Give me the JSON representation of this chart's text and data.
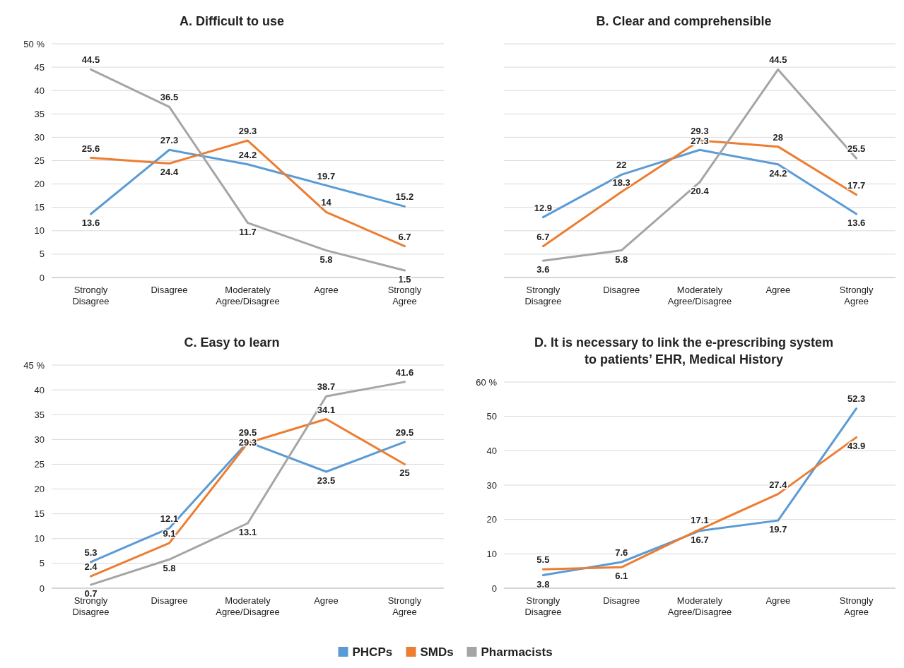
{
  "chart_data": [
    {
      "type": "line",
      "title": "A. Difficult to use",
      "categories": [
        "Strongly Disagree",
        "Disagree",
        "Moderately Agree/Disagree",
        "Agree",
        "Strongly Agree"
      ],
      "series": [
        {
          "name": "PHCPs",
          "color": "#5b9bd5",
          "values": [
            13.6,
            27.3,
            24.2,
            19.7,
            15.2
          ]
        },
        {
          "name": "SMDs",
          "color": "#ed7d31",
          "values": [
            25.6,
            24.4,
            29.3,
            14,
            6.7
          ]
        },
        {
          "name": "Pharmacists",
          "color": "#a5a5a5",
          "values": [
            44.5,
            36.5,
            11.7,
            5.8,
            1.5
          ]
        }
      ],
      "ylim": [
        0,
        50
      ],
      "yticks": [
        0,
        5,
        10,
        15,
        20,
        25,
        30,
        35,
        40,
        45,
        {
          "value": 50,
          "label": "50 %"
        }
      ],
      "grid": "y",
      "data_labels": true,
      "marker": "none",
      "legend": "bottom"
    },
    {
      "type": "line",
      "title": "B. Clear and comprehensible",
      "categories": [
        "Strongly Disagree",
        "Disagree",
        "Moderately Agree/Disagree",
        "Agree",
        "Strongly Agree"
      ],
      "series": [
        {
          "color": "#5b9bd5",
          "values": [
            12.9,
            22,
            27.3,
            24.2,
            13.6
          ]
        },
        {
          "color": "#ed7d31",
          "values": [
            6.7,
            18.3,
            29.3,
            28,
            17.7
          ]
        },
        {
          "color": "#a5a5a5",
          "values": [
            3.6,
            5.8,
            20.4,
            44.5,
            25.5
          ]
        }
      ],
      "ylim": [
        0,
        50
      ],
      "yticks": [
        {
          "value": 0,
          "label": null
        },
        {
          "value": 5,
          "label": null
        },
        {
          "value": 10,
          "label": null
        },
        {
          "value": 15,
          "label": null
        },
        {
          "value": 20,
          "label": null
        },
        {
          "value": 25,
          "label": null
        },
        {
          "value": 30,
          "label": null
        },
        {
          "value": 35,
          "label": null
        },
        {
          "value": 40,
          "label": null
        },
        {
          "value": 45,
          "label": null
        },
        {
          "value": 50,
          "label": null
        }
      ],
      "tick_labels": "x",
      "grid": "y",
      "data_labels": true,
      "marker": "none"
    },
    {
      "type": "line",
      "title": "C. Easy to learn",
      "categories": [
        "Strongly Disagree",
        "Disagree",
        "Moderately Agree/Disagree",
        "Agree",
        "Strongly Agree"
      ],
      "series": [
        {
          "color": "#5b9bd5",
          "values": [
            5.3,
            12.1,
            29.5,
            23.5,
            29.5
          ]
        },
        {
          "color": "#ed7d31",
          "values": [
            2.4,
            9.1,
            29.3,
            34.1,
            25
          ]
        },
        {
          "color": "#a5a5a5",
          "values": [
            0.7,
            5.8,
            13.1,
            38.7,
            41.6
          ]
        }
      ],
      "ylim": [
        0,
        45
      ],
      "yticks": [
        0,
        5,
        10,
        15,
        20,
        25,
        30,
        35,
        40,
        {
          "value": 45,
          "label": "45 %"
        }
      ],
      "grid": "y",
      "data_labels": true,
      "marker": "none"
    },
    {
      "type": "line",
      "title": "D. It is necessary to link the e-prescribing system to patients’ EHR, Medical History",
      "categories": [
        "Strongly Disagree",
        "Disagree",
        "Moderately Agree/Disagree",
        "Agree",
        "Strongly Agree"
      ],
      "series": [
        {
          "color": "#5b9bd5",
          "values": [
            3.8,
            7.6,
            16.7,
            19.7,
            52.3
          ]
        },
        {
          "color": "#ed7d31",
          "values": [
            5.5,
            6.1,
            17.1,
            27.4,
            43.9
          ]
        }
      ],
      "ylim": [
        0,
        60
      ],
      "yticks": [
        0,
        10,
        20,
        30,
        40,
        50,
        {
          "value": 60,
          "label": "60 %"
        }
      ],
      "grid": "y",
      "data_labels": true,
      "marker": "none"
    }
  ]
}
